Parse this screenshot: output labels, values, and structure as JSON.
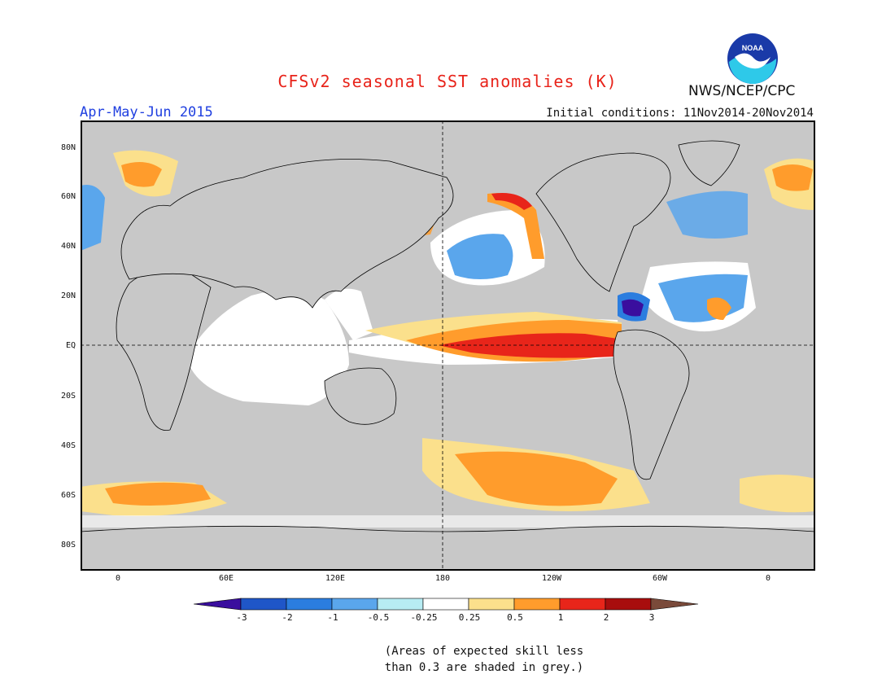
{
  "title": "CFSv2 seasonal SST anomalies (K)",
  "season": "Apr-May-Jun 2015",
  "initial_conditions": "Initial conditions: 11Nov2014-20Nov2014",
  "org": "NWS/NCEP/CPC",
  "logo_text": "NOAA",
  "lat_labels": [
    "80N",
    "60N",
    "40N",
    "20N",
    "EQ",
    "20S",
    "40S",
    "60S",
    "80S"
  ],
  "lon_labels": [
    "0",
    "60E",
    "120E",
    "180",
    "120W",
    "60W",
    "0"
  ],
  "colorbar": {
    "labels": [
      "-3",
      "-2",
      "-1",
      "-0.5",
      "-0.25",
      "0.25",
      "0.5",
      "1",
      "2",
      "3"
    ],
    "colors": [
      "#3a0e9e",
      "#1f56c8",
      "#2b7ddf",
      "#5aa6ec",
      "#b7ecf3",
      "#ffffff",
      "#fbe08c",
      "#ff9c2c",
      "#e8251a",
      "#a80d0d",
      "#7a4a3a"
    ]
  },
  "note_line1": "(Areas of expected skill less",
  "note_line2": "than 0.3 are shaded in grey.)"
}
